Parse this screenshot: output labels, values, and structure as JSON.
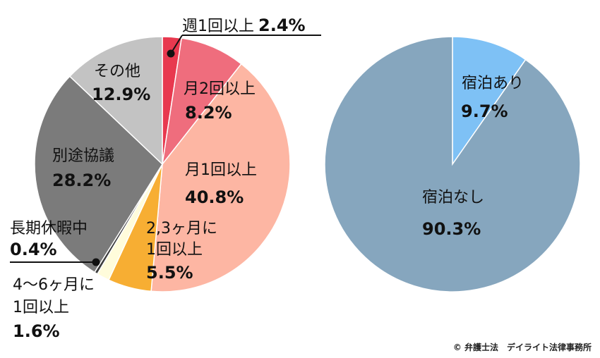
{
  "chart_data": [
    {
      "type": "pie",
      "categories": [
        "週1回以上",
        "月2回以上",
        "月1回以上",
        "2,3ヶ月に1回以上",
        "4〜6ヶ月に1回以上",
        "長期休暇中",
        "別途協議",
        "その他"
      ],
      "values": [
        2.4,
        8.2,
        40.8,
        5.5,
        1.6,
        0.4,
        28.2,
        12.9
      ],
      "value_labels": [
        "2.4%",
        "8.2%",
        "40.8%",
        "5.5%",
        "1.6%",
        "0.4%",
        "28.2%",
        "12.9%"
      ],
      "colors": [
        "#e8394f",
        "#ef6d7d",
        "#fdb6a3",
        "#f7ae33",
        "#fffcdb",
        "#3c3c3c",
        "#7b7b7b",
        "#c3c3c3"
      ]
    },
    {
      "type": "pie",
      "categories": [
        "宿泊あり",
        "宿泊なし"
      ],
      "values": [
        9.7,
        90.3
      ],
      "value_labels": [
        "9.7%",
        "90.3%"
      ],
      "colors": [
        "#7ec1f5",
        "#86a6be"
      ]
    }
  ],
  "labels": {
    "weekly": {
      "name": "週1回以上",
      "value": "2.4%"
    },
    "month2": {
      "name": "月2回以上",
      "value": "8.2%"
    },
    "month1": {
      "name": "月1回以上",
      "value": "40.8%"
    },
    "m23_line1": "2,3ヶ月に",
    "m23_line2": "1回以上",
    "m23_value": "5.5%",
    "m46_line1": "4〜6ヶ月に",
    "m46_line2": "1回以上",
    "m46_value": "1.6%",
    "holiday": {
      "name": "長期休暇中",
      "value": "0.4%"
    },
    "separate": {
      "name": "別途協議",
      "value": "28.2%"
    },
    "other": {
      "name": "その他",
      "value": "12.9%"
    },
    "stay_yes": {
      "name": "宿泊あり",
      "value": "9.7%"
    },
    "stay_no": {
      "name": "宿泊なし",
      "value": "90.3%"
    }
  },
  "credit": "© 弁護士法　デイライト法律事務所"
}
